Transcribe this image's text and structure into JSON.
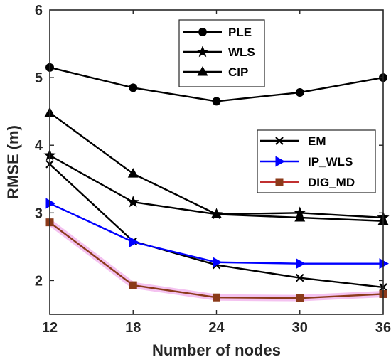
{
  "chart_data": {
    "type": "line",
    "title": "",
    "xlabel": "Number of nodes",
    "ylabel": "RMSE (m)",
    "x": [
      12,
      18,
      24,
      30,
      36
    ],
    "xlim": [
      12,
      36
    ],
    "ylim": [
      1.5,
      6
    ],
    "xticks": [
      "12",
      "18",
      "24",
      "30",
      "36"
    ],
    "yticks": [
      "2",
      "3",
      "4",
      "5",
      "6"
    ],
    "grid": false,
    "legends": [
      {
        "placement": "top-center",
        "entries": [
          "PLE",
          "WLS",
          "CIP"
        ]
      },
      {
        "placement": "center-right",
        "entries": [
          "EM",
          "IP_WLS",
          "DIG_MD"
        ]
      }
    ],
    "series": [
      {
        "name": "PLE",
        "marker": "circle",
        "color": "#000000",
        "values": [
          5.15,
          4.85,
          4.65,
          4.78,
          5.0
        ]
      },
      {
        "name": "WLS",
        "marker": "star",
        "color": "#000000",
        "values": [
          3.85,
          3.16,
          2.98,
          3.0,
          2.93
        ]
      },
      {
        "name": "CIP",
        "marker": "triangle-up",
        "color": "#000000",
        "values": [
          4.48,
          3.58,
          2.98,
          2.93,
          2.88
        ]
      },
      {
        "name": "EM",
        "marker": "x",
        "color": "#000000",
        "values": [
          3.72,
          2.58,
          2.23,
          2.04,
          1.9
        ]
      },
      {
        "name": "IP_WLS",
        "marker": "triangle-right",
        "color": "#0000ff",
        "values": [
          3.14,
          2.57,
          2.27,
          2.25,
          2.25
        ]
      },
      {
        "name": "DIG_MD",
        "marker": "square",
        "color": "#8b3a1a",
        "values": [
          2.86,
          1.93,
          1.75,
          1.74,
          1.8
        ]
      }
    ]
  }
}
